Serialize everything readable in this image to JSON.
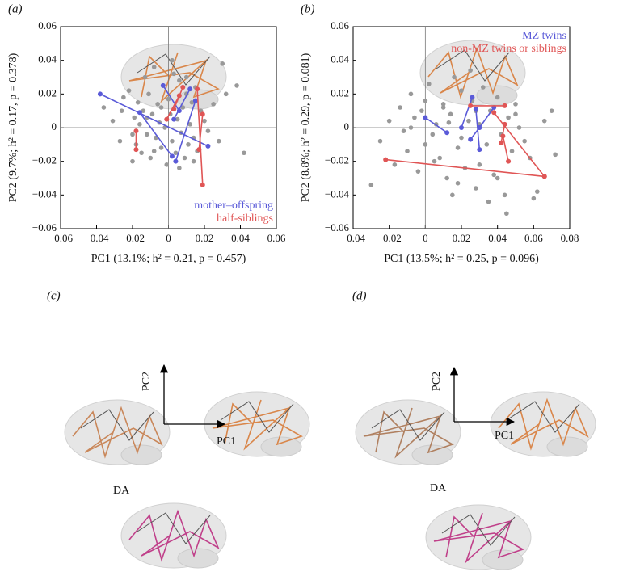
{
  "chart_data": [
    {
      "type": "scatter",
      "panel_label": "(a)",
      "x_label": "PC1 (13.1%; h² = 0.21, p = 0.457)",
      "y_label": "PC2 (9.7%; h² = 0.17, p = 0.378)",
      "xlim": [
        -0.06,
        0.06
      ],
      "ylim": [
        -0.06,
        0.06
      ],
      "xticks": [
        {
          "value": -0.06,
          "label": "−0.06"
        },
        {
          "value": -0.04,
          "label": "−0.04"
        },
        {
          "value": -0.02,
          "label": "−0.02"
        },
        0,
        0.02,
        0.04,
        0.06
      ],
      "yticks": [
        {
          "value": -0.06,
          "label": "−0.06"
        },
        {
          "value": -0.04,
          "label": "−0.04"
        },
        {
          "value": -0.02,
          "label": "−0.02"
        },
        0,
        0.02,
        0.04,
        0.06
      ],
      "zero_lines": true,
      "legend": "lower right",
      "series": [
        {
          "color": "#999999",
          "kind": "points",
          "x": [
            -0.036,
            -0.031,
            -0.027,
            -0.025,
            -0.022,
            -0.02,
            -0.019,
            -0.018,
            -0.017,
            -0.016,
            -0.015,
            -0.014,
            -0.013,
            -0.012,
            -0.011,
            -0.01,
            -0.009,
            -0.008,
            -0.007,
            -0.006,
            -0.005,
            -0.004,
            -0.003,
            -0.002,
            -0.001,
            0.0,
            0.001,
            0.002,
            0.003,
            0.004,
            0.005,
            0.006,
            0.007,
            0.008,
            0.009,
            0.01,
            0.011,
            0.012,
            0.013,
            0.014,
            0.015,
            0.016,
            0.018,
            0.02,
            0.022,
            0.025,
            0.028,
            0.032,
            0.038,
            0.042,
            -0.02,
            -0.012,
            -0.008,
            -0.004,
            0.002,
            0.006,
            0.01,
            0.014,
            -0.026,
            0.03
          ],
          "y": [
            0.012,
            0.004,
            -0.008,
            0.018,
            0.022,
            -0.02,
            0.006,
            -0.01,
            0.015,
            0.002,
            -0.015,
            0.01,
            0.03,
            -0.004,
            0.02,
            -0.018,
            0.008,
            0.036,
            -0.006,
            0.014,
            0.003,
            -0.012,
            0.025,
            0.0,
            -0.022,
            0.017,
            0.008,
            -0.008,
            0.032,
            -0.015,
            0.005,
            0.028,
            -0.003,
            0.012,
            -0.018,
            0.02,
            -0.01,
            0.002,
            0.015,
            -0.006,
            0.024,
            -0.014,
            0.01,
            0.004,
            -0.002,
            0.014,
            -0.008,
            0.02,
            0.025,
            -0.015,
            -0.004,
            0.006,
            -0.014,
            0.012,
            0.04,
            -0.024,
            0.03,
            -0.02,
            0.01,
            0.038
          ]
        },
        {
          "name": "mother–offspring",
          "color": "#5a5ad8",
          "kind": "pairs",
          "x": [
            -0.038,
            0.022,
            null,
            -0.016,
            0.002,
            null,
            -0.003,
            0.006,
            null,
            0.012,
            0.003,
            null,
            0.015,
            0.004
          ],
          "y": [
            0.02,
            -0.011,
            null,
            0.009,
            -0.017,
            null,
            0.025,
            0.01,
            null,
            0.023,
            0.005,
            null,
            0.016,
            -0.02
          ]
        },
        {
          "name": "half-siblings",
          "color": "#e05555",
          "kind": "pairs",
          "x": [
            0.008,
            0.003,
            null,
            0.016,
            0.019,
            null,
            0.019,
            0.017,
            null,
            -0.018,
            -0.018,
            null,
            0.006,
            -0.001
          ],
          "y": [
            0.024,
            0.011,
            null,
            0.023,
            -0.034,
            null,
            0.008,
            -0.013,
            null,
            -0.002,
            -0.013,
            null,
            0.019,
            0.005
          ]
        }
      ]
    },
    {
      "type": "scatter",
      "panel_label": "(b)",
      "x_label": "PC1 (13.5%; h² = 0.25, p = 0.096)",
      "y_label": "PC2 (8.8%; h² = 0.29, p = 0.081)",
      "xlim": [
        -0.04,
        0.08
      ],
      "ylim": [
        -0.06,
        0.06
      ],
      "xticks": [
        {
          "value": -0.04,
          "label": "−0.04"
        },
        {
          "value": -0.02,
          "label": "−0.02"
        },
        0,
        0.02,
        0.04,
        0.06,
        0.08
      ],
      "yticks": [
        {
          "value": -0.06,
          "label": "−0.06"
        },
        {
          "value": -0.04,
          "label": "−0.04"
        },
        {
          "value": -0.02,
          "label": "−0.02"
        },
        0,
        0.02,
        0.04,
        0.06
      ],
      "zero_lines": true,
      "legend": "upper right",
      "series": [
        {
          "color": "#999999",
          "kind": "points",
          "x": [
            -0.03,
            -0.025,
            -0.02,
            -0.017,
            -0.014,
            -0.012,
            -0.01,
            -0.008,
            -0.006,
            -0.004,
            -0.002,
            0.0,
            0.002,
            0.004,
            0.006,
            0.008,
            0.01,
            0.012,
            0.014,
            0.016,
            0.018,
            0.02,
            0.022,
            0.024,
            0.026,
            0.028,
            0.03,
            0.032,
            0.034,
            0.036,
            0.038,
            0.04,
            0.042,
            0.044,
            0.046,
            0.048,
            0.05,
            0.052,
            0.055,
            0.058,
            0.062,
            0.066,
            0.07,
            0.072,
            0.005,
            0.015,
            0.025,
            0.035,
            0.045,
            -0.008,
            0.01,
            0.02,
            0.03,
            0.04,
            0.05,
            0.0,
            0.018,
            0.028,
            0.06,
            0.013
          ],
          "y": [
            -0.034,
            -0.008,
            0.004,
            -0.022,
            0.012,
            -0.002,
            -0.014,
            0.02,
            0.006,
            -0.026,
            0.01,
            -0.01,
            0.026,
            -0.004,
            0.002,
            -0.018,
            0.014,
            -0.03,
            0.008,
            0.03,
            -0.012,
            0.022,
            -0.024,
            0.004,
            0.016,
            -0.036,
            0.002,
            0.024,
            -0.01,
            0.01,
            -0.028,
            0.018,
            -0.004,
            -0.04,
            0.006,
            -0.014,
            0.014,
            0.0,
            -0.008,
            -0.018,
            -0.038,
            0.004,
            0.01,
            -0.016,
            -0.02,
            -0.04,
            0.034,
            -0.044,
            -0.051,
            0.0,
            0.012,
            -0.006,
            -0.022,
            -0.03,
            0.008,
            0.016,
            -0.033,
            0.01,
            -0.042,
            0.003
          ]
        },
        {
          "name": "MZ twins",
          "color": "#5a5ad8",
          "kind": "pairs",
          "x": [
            0.0,
            0.012,
            null,
            0.026,
            0.02,
            null,
            0.028,
            0.03,
            null,
            0.03,
            0.025,
            null,
            0.038,
            0.03
          ],
          "y": [
            0.006,
            -0.003,
            null,
            0.018,
            0.0,
            null,
            0.011,
            -0.013,
            null,
            0.0,
            -0.007,
            null,
            0.012,
            0.0
          ]
        },
        {
          "name": "non-MZ twins or siblings",
          "color": "#e05555",
          "kind": "pairs",
          "x": [
            -0.022,
            0.066,
            null,
            0.025,
            0.044,
            null,
            0.038,
            0.066,
            null,
            0.044,
            0.042,
            null,
            0.043,
            0.046
          ],
          "y": [
            -0.019,
            -0.029,
            null,
            0.013,
            0.013,
            null,
            0.009,
            -0.029,
            null,
            0.002,
            -0.009,
            null,
            -0.005,
            -0.02
          ]
        }
      ]
    }
  ],
  "diagrams": [
    {
      "panel_label": "(c)",
      "axis_x": "PC1",
      "axis_y": "PC2",
      "caption": "DA"
    },
    {
      "panel_label": "(d)",
      "axis_x": "PC1",
      "axis_y": "PC2",
      "caption": "DA"
    }
  ]
}
